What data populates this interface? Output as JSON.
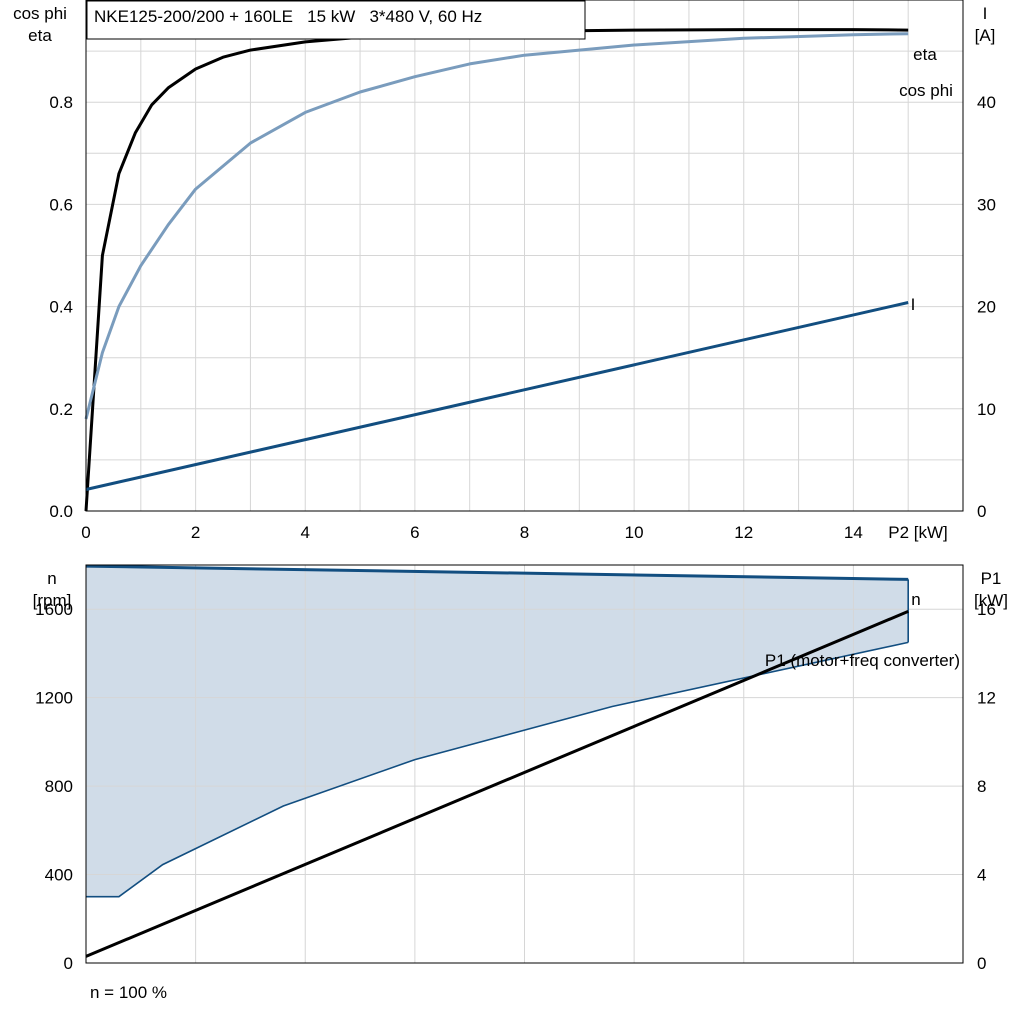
{
  "chart_data": [
    {
      "type": "line",
      "title": "NKE125-200/200 + 160LE   15 kW   3*480 V, 60 Hz",
      "xlabel": "P2 [kW]",
      "ylabel_left": [
        "cos phi",
        "eta"
      ],
      "ylabel_right": [
        "I",
        "[A]"
      ],
      "xlim": [
        0,
        16
      ],
      "ylim_left": [
        0,
        1.0
      ],
      "ylim_right": [
        0,
        50
      ],
      "x_ticks": [
        "0",
        "2",
        "4",
        "6",
        "8",
        "10",
        "12",
        "14"
      ],
      "y_ticks_left": [
        "0.0",
        "0.2",
        "0.4",
        "0.6",
        "0.8"
      ],
      "y_ticks_right": [
        "0",
        "10",
        "20",
        "30",
        "40"
      ],
      "grid": true,
      "series": [
        {
          "name": "eta",
          "axis": "left",
          "color": "#000000",
          "points": [
            [
              0,
              0.0
            ],
            [
              0.3,
              0.5
            ],
            [
              0.6,
              0.66
            ],
            [
              0.9,
              0.74
            ],
            [
              1.2,
              0.795
            ],
            [
              1.5,
              0.828
            ],
            [
              2,
              0.865
            ],
            [
              2.5,
              0.888
            ],
            [
              3,
              0.902
            ],
            [
              4,
              0.918
            ],
            [
              5,
              0.927
            ],
            [
              6,
              0.933
            ],
            [
              8,
              0.939
            ],
            [
              10,
              0.941
            ],
            [
              12,
              0.942
            ],
            [
              14,
              0.942
            ],
            [
              15,
              0.941
            ]
          ]
        },
        {
          "name": "cos phi",
          "axis": "left",
          "color": "#7a9cbd",
          "points": [
            [
              0,
              0.18
            ],
            [
              0.3,
              0.31
            ],
            [
              0.6,
              0.4
            ],
            [
              1,
              0.48
            ],
            [
              1.5,
              0.56
            ],
            [
              2,
              0.63
            ],
            [
              3,
              0.72
            ],
            [
              4,
              0.78
            ],
            [
              5,
              0.82
            ],
            [
              6,
              0.85
            ],
            [
              7,
              0.875
            ],
            [
              8,
              0.892
            ],
            [
              10,
              0.912
            ],
            [
              12,
              0.925
            ],
            [
              14,
              0.932
            ],
            [
              15,
              0.934
            ]
          ]
        },
        {
          "name": "I",
          "axis": "right",
          "color": "#124e80",
          "points": [
            [
              0,
              2.1
            ],
            [
              15,
              20.4
            ]
          ]
        }
      ]
    },
    {
      "type": "area",
      "xlim": [
        0,
        16
      ],
      "ylabel_left": [
        "n",
        "[rpm]"
      ],
      "ylabel_right": [
        "P1",
        "[kW]"
      ],
      "ylim_left": [
        0,
        1800
      ],
      "ylim_right": [
        0,
        18
      ],
      "y_ticks_left": [
        "0",
        "400",
        "800",
        "1200",
        "1600"
      ],
      "y_ticks_right": [
        "0",
        "4",
        "8",
        "12",
        "16"
      ],
      "grid": true,
      "footnote": "n = 100 %",
      "n_band": {
        "name": "n",
        "upper": [
          [
            0,
            1795
          ],
          [
            15,
            1735
          ]
        ],
        "lower": [
          [
            0,
            300
          ],
          [
            0.6,
            300
          ],
          [
            1.4,
            445
          ],
          [
            3.6,
            710
          ],
          [
            6,
            920
          ],
          [
            9.6,
            1160
          ],
          [
            15,
            1450
          ]
        ],
        "line_color": "#124e80",
        "fill_color": "#d0dce8"
      },
      "series": [
        {
          "name": "P1 (motor+freq converter)",
          "axis": "right",
          "color": "#000000",
          "points": [
            [
              0,
              0.3
            ],
            [
              15,
              15.9
            ]
          ]
        }
      ]
    }
  ]
}
